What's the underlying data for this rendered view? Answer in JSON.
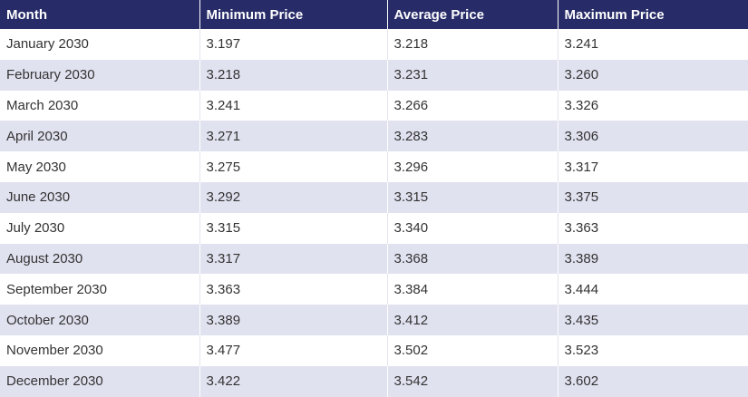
{
  "table": {
    "headers": [
      "Month",
      "Minimum Price",
      "Average Price",
      "Maximum Price"
    ],
    "rows": [
      [
        "January 2030",
        "3.197",
        "3.218",
        "3.241"
      ],
      [
        "February 2030",
        "3.218",
        "3.231",
        "3.260"
      ],
      [
        "March 2030",
        "3.241",
        "3.266",
        "3.326"
      ],
      [
        "April 2030",
        "3.271",
        "3.283",
        "3.306"
      ],
      [
        "May 2030",
        "3.275",
        "3.296",
        "3.317"
      ],
      [
        "June 2030",
        "3.292",
        "3.315",
        "3.375"
      ],
      [
        "July 2030",
        "3.315",
        "3.340",
        "3.363"
      ],
      [
        "August 2030",
        "3.317",
        "3.368",
        "3.389"
      ],
      [
        "September 2030",
        "3.363",
        "3.384",
        "3.444"
      ],
      [
        "October 2030",
        "3.389",
        "3.412",
        "3.435"
      ],
      [
        "November 2030",
        "3.477",
        "3.502",
        "3.523"
      ],
      [
        "December 2030",
        "3.422",
        "3.542",
        "3.602"
      ]
    ]
  },
  "colors": {
    "header_bg": "#272c69",
    "header_text": "#ffffff",
    "stripe_bg": "#e1e2f0",
    "body_text": "#333333"
  }
}
